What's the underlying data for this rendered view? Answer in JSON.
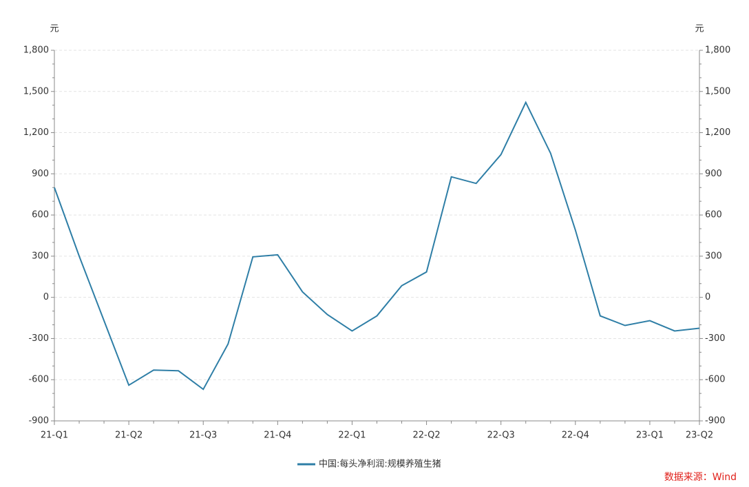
{
  "chart_data": {
    "type": "line",
    "y_unit": "元",
    "y2_unit": "元",
    "categories": [
      "21-Q1",
      null,
      null,
      "21-Q2",
      null,
      null,
      "21-Q3",
      null,
      null,
      "21-Q4",
      null,
      null,
      "22-Q1",
      null,
      null,
      "22-Q2",
      null,
      null,
      "22-Q3",
      null,
      null,
      "22-Q4",
      null,
      null,
      "23-Q1",
      null,
      "23-Q2"
    ],
    "series": [
      {
        "name": "中国:每头净利润:规模养殖生猪",
        "color": "#2e7ea6",
        "values": [
          800,
          300,
          -170,
          -640,
          -530,
          -535,
          -670,
          -340,
          295,
          310,
          40,
          -125,
          -245,
          -135,
          85,
          185,
          878,
          830,
          1040,
          1420,
          1050,
          490,
          -135,
          -205,
          -170,
          -245,
          -225
        ]
      }
    ],
    "ylim": [
      -900,
      1800
    ],
    "yticks": [
      -900,
      -600,
      -300,
      0,
      300,
      600,
      900,
      {
        "value": 1200,
        "label": "1,200"
      },
      {
        "value": 1500,
        "label": "1,500"
      },
      {
        "value": 1800,
        "label": "1,800"
      }
    ],
    "y2lim": [
      -900,
      1800
    ],
    "y2ticks": [
      -900,
      -600,
      -300,
      0,
      300,
      600,
      900,
      {
        "value": 1200,
        "label": "1,200"
      },
      {
        "value": 1500,
        "label": "1,500"
      },
      {
        "value": 1800,
        "label": "1,800"
      }
    ],
    "grid": true,
    "source": "数据来源：Wind"
  }
}
